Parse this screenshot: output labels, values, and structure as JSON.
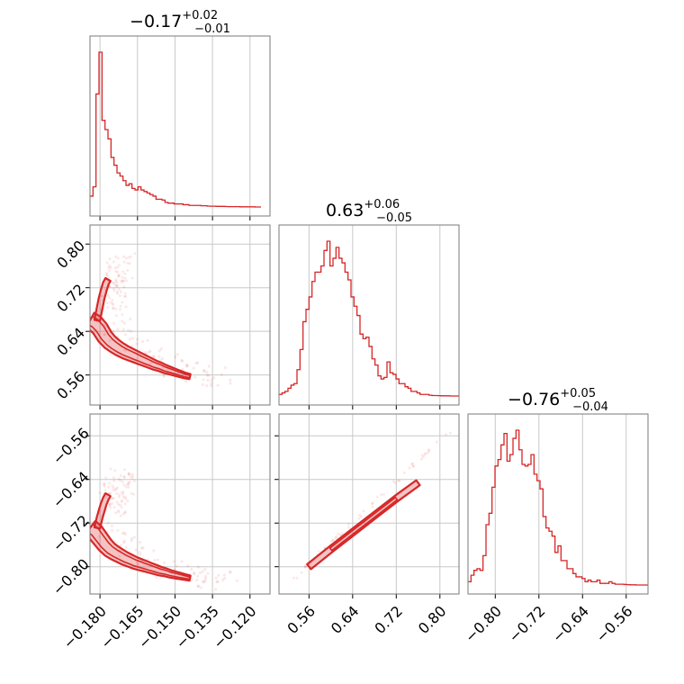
{
  "chart_data": [
    {
      "type": "histogram",
      "panel": "0-0",
      "title": {
        "main": "−0.17",
        "sup": "+0.02",
        "sub": "−0.01"
      },
      "xlim": [
        -0.184,
        -0.112
      ],
      "x_ticks": [
        -0.18,
        -0.165,
        -0.15,
        -0.135,
        -0.12
      ],
      "bins_x": [
        -0.184,
        -0.1828,
        -0.1816,
        -0.1804,
        -0.1792,
        -0.178,
        -0.1768,
        -0.1756,
        -0.1744,
        -0.1732,
        -0.172,
        -0.1708,
        -0.1696,
        -0.1684,
        -0.1672,
        -0.166,
        -0.1648,
        -0.1636,
        -0.1624,
        -0.1612,
        -0.16,
        -0.1588,
        -0.1576,
        -0.1564,
        -0.1552,
        -0.154,
        -0.1528,
        -0.1516,
        -0.1504,
        -0.1492,
        -0.148,
        -0.1468,
        -0.1456,
        -0.1444,
        -0.1432,
        -0.142,
        -0.1408,
        -0.1396,
        -0.1384,
        -0.1372,
        -0.136,
        -0.1348,
        -0.1336,
        -0.1324,
        -0.1312,
        -0.13,
        -0.1288,
        -0.1276,
        -0.1264,
        -0.1252,
        -0.124,
        -0.1228,
        -0.1216,
        -0.1204,
        -0.1192,
        -0.118,
        -0.1168,
        -0.1156
      ],
      "counts": [
        0.07,
        0.13,
        0.73,
        1.0,
        0.56,
        0.5,
        0.44,
        0.32,
        0.27,
        0.22,
        0.2,
        0.17,
        0.14,
        0.15,
        0.12,
        0.11,
        0.13,
        0.11,
        0.1,
        0.09,
        0.08,
        0.07,
        0.05,
        0.05,
        0.045,
        0.03,
        0.025,
        0.025,
        0.02,
        0.02,
        0.02,
        0.015,
        0.015,
        0.01,
        0.01,
        0.01,
        0.01,
        0.008,
        0.008,
        0.006,
        0.005,
        0.005,
        0.004,
        0.004,
        0.004,
        0.003,
        0.002,
        0.002,
        0.002,
        0.002,
        0.001,
        0.001,
        0.001,
        0.001,
        0.001,
        0,
        0
      ]
    },
    {
      "type": "contour",
      "panel": "1-0",
      "xlim": [
        -0.184,
        -0.112
      ],
      "ylim": [
        0.505,
        0.835
      ],
      "x_ticks": [
        -0.18,
        -0.165,
        -0.15,
        -0.135,
        -0.12
      ],
      "y_ticks": [
        0.56,
        0.64,
        0.72,
        0.8
      ],
      "ridge_x": [
        -0.184,
        -0.182,
        -0.18,
        -0.178,
        -0.176,
        -0.174,
        -0.172,
        -0.17,
        -0.168,
        -0.166,
        -0.164,
        -0.162,
        -0.16,
        -0.158,
        -0.156,
        -0.154,
        -0.152,
        -0.15,
        -0.148,
        -0.146,
        -0.144
      ],
      "ridge_y": [
        0.66,
        0.655,
        0.645,
        0.63,
        0.62,
        0.613,
        0.607,
        0.602,
        0.598,
        0.594,
        0.59,
        0.586,
        0.582,
        0.578,
        0.575,
        0.571,
        0.568,
        0.565,
        0.562,
        0.559,
        0.557
      ],
      "upper_branch_y": [
        0.66,
        0.68,
        0.7,
        0.715,
        0.728,
        0.735
      ]
    },
    {
      "type": "histogram",
      "panel": "1-1",
      "title": {
        "main": "0.63",
        "sup": "+0.06",
        "sub": "−0.05"
      },
      "xlim": [
        0.505,
        0.835
      ],
      "x_ticks": [
        0.56,
        0.64,
        0.72,
        0.8
      ],
      "bins_x": [
        0.505,
        0.5105,
        0.516,
        0.5215,
        0.527,
        0.5325,
        0.538,
        0.5435,
        0.549,
        0.5545,
        0.56,
        0.5655,
        0.571,
        0.5765,
        0.582,
        0.5875,
        0.593,
        0.5985,
        0.604,
        0.6095,
        0.615,
        0.6205,
        0.626,
        0.6315,
        0.637,
        0.6425,
        0.648,
        0.6535,
        0.659,
        0.6645,
        0.67,
        0.6755,
        0.681,
        0.6865,
        0.692,
        0.6975,
        0.703,
        0.7085,
        0.714,
        0.7195,
        0.725,
        0.7305,
        0.736,
        0.7415,
        0.747,
        0.7525,
        0.758,
        0.7635,
        0.769,
        0.7745,
        0.78,
        0.7855,
        0.791,
        0.7965,
        0.802,
        0.8075,
        0.813,
        0.8185,
        0.824,
        0.8295,
        0.835
      ],
      "counts": [
        0.01,
        0.02,
        0.03,
        0.05,
        0.07,
        0.08,
        0.17,
        0.3,
        0.48,
        0.56,
        0.64,
        0.74,
        0.8,
        0.8,
        0.84,
        0.94,
        1.0,
        0.84,
        0.89,
        0.96,
        0.89,
        0.86,
        0.8,
        0.75,
        0.64,
        0.58,
        0.52,
        0.4,
        0.37,
        0.38,
        0.32,
        0.24,
        0.2,
        0.13,
        0.11,
        0.12,
        0.22,
        0.15,
        0.14,
        0.11,
        0.08,
        0.08,
        0.06,
        0.05,
        0.03,
        0.03,
        0.02,
        0.01,
        0.01,
        0.01,
        0.005,
        0.003,
        0.003,
        0.002,
        0.001,
        0.001,
        0.001,
        0,
        0,
        0
      ]
    },
    {
      "type": "contour",
      "panel": "2-0",
      "xlim": [
        -0.184,
        -0.112
      ],
      "ylim": [
        -0.85,
        -0.52
      ],
      "x_ticks": [
        -0.18,
        -0.165,
        -0.15,
        -0.135,
        -0.12
      ],
      "y_ticks": [
        -0.8,
        -0.72,
        -0.64,
        -0.56
      ],
      "ridge_x": [
        -0.184,
        -0.182,
        -0.18,
        -0.178,
        -0.176,
        -0.174,
        -0.172,
        -0.17,
        -0.168,
        -0.166,
        -0.164,
        -0.162,
        -0.16,
        -0.158,
        -0.156,
        -0.154,
        -0.152,
        -0.15,
        -0.148,
        -0.146,
        -0.144
      ],
      "ridge_y": [
        -0.729,
        -0.736,
        -0.748,
        -0.76,
        -0.769,
        -0.775,
        -0.78,
        -0.785,
        -0.789,
        -0.793,
        -0.796,
        -0.799,
        -0.802,
        -0.805,
        -0.808,
        -0.81,
        -0.813,
        -0.815,
        -0.817,
        -0.819,
        -0.821
      ],
      "upper_branch_y": [
        -0.729,
        -0.712,
        -0.698,
        -0.685,
        -0.675,
        -0.668
      ]
    },
    {
      "type": "contour",
      "panel": "2-1",
      "xlim": [
        0.505,
        0.835
      ],
      "ylim": [
        -0.85,
        -0.52
      ],
      "x_ticks": [
        0.56,
        0.64,
        0.72,
        0.8
      ],
      "y_ticks": [
        -0.8,
        -0.72,
        -0.64,
        -0.56
      ],
      "ridge_x": [
        0.52,
        0.56,
        0.6,
        0.64,
        0.68,
        0.72,
        0.76,
        0.8,
        0.83
      ],
      "ridge_y": [
        -0.832,
        -0.8,
        -0.768,
        -0.737,
        -0.706,
        -0.675,
        -0.646,
        -0.608,
        -0.54
      ]
    },
    {
      "type": "histogram",
      "panel": "2-2",
      "title": {
        "main": "−0.76",
        "sup": "+0.05",
        "sub": "−0.04"
      },
      "xlim": [
        -0.85,
        -0.52
      ],
      "x_ticks": [
        -0.8,
        -0.72,
        -0.64,
        -0.56
      ],
      "bins_x": [
        -0.85,
        -0.8445,
        -0.839,
        -0.8335,
        -0.828,
        -0.8225,
        -0.817,
        -0.8115,
        -0.806,
        -0.8005,
        -0.795,
        -0.7895,
        -0.784,
        -0.7785,
        -0.773,
        -0.7675,
        -0.762,
        -0.7565,
        -0.751,
        -0.7455,
        -0.74,
        -0.7345,
        -0.729,
        -0.7235,
        -0.718,
        -0.7125,
        -0.707,
        -0.7015,
        -0.696,
        -0.6905,
        -0.685,
        -0.6795,
        -0.674,
        -0.6685,
        -0.663,
        -0.6575,
        -0.652,
        -0.6465,
        -0.641,
        -0.6355,
        -0.63,
        -0.6245,
        -0.619,
        -0.6135,
        -0.608,
        -0.6025,
        -0.597,
        -0.5915,
        -0.586,
        -0.5805,
        -0.575,
        -0.5695,
        -0.564,
        -0.5585,
        -0.553,
        -0.5475,
        -0.542,
        -0.5365,
        -0.531,
        -0.5255,
        -0.52
      ],
      "counts": [
        0.02,
        0.06,
        0.09,
        0.1,
        0.09,
        0.18,
        0.37,
        0.44,
        0.6,
        0.73,
        0.77,
        0.86,
        0.93,
        0.76,
        0.8,
        0.9,
        0.95,
        0.83,
        0.74,
        0.73,
        0.74,
        0.8,
        0.68,
        0.64,
        0.59,
        0.42,
        0.35,
        0.33,
        0.3,
        0.2,
        0.24,
        0.15,
        0.15,
        0.1,
        0.1,
        0.07,
        0.05,
        0.05,
        0.04,
        0.02,
        0.03,
        0.02,
        0.02,
        0.03,
        0.01,
        0.01,
        0.01,
        0.02,
        0.01,
        0.005,
        0.005,
        0.005,
        0.003,
        0.002,
        0.001,
        0.001,
        0,
        0,
        0,
        0
      ]
    }
  ]
}
